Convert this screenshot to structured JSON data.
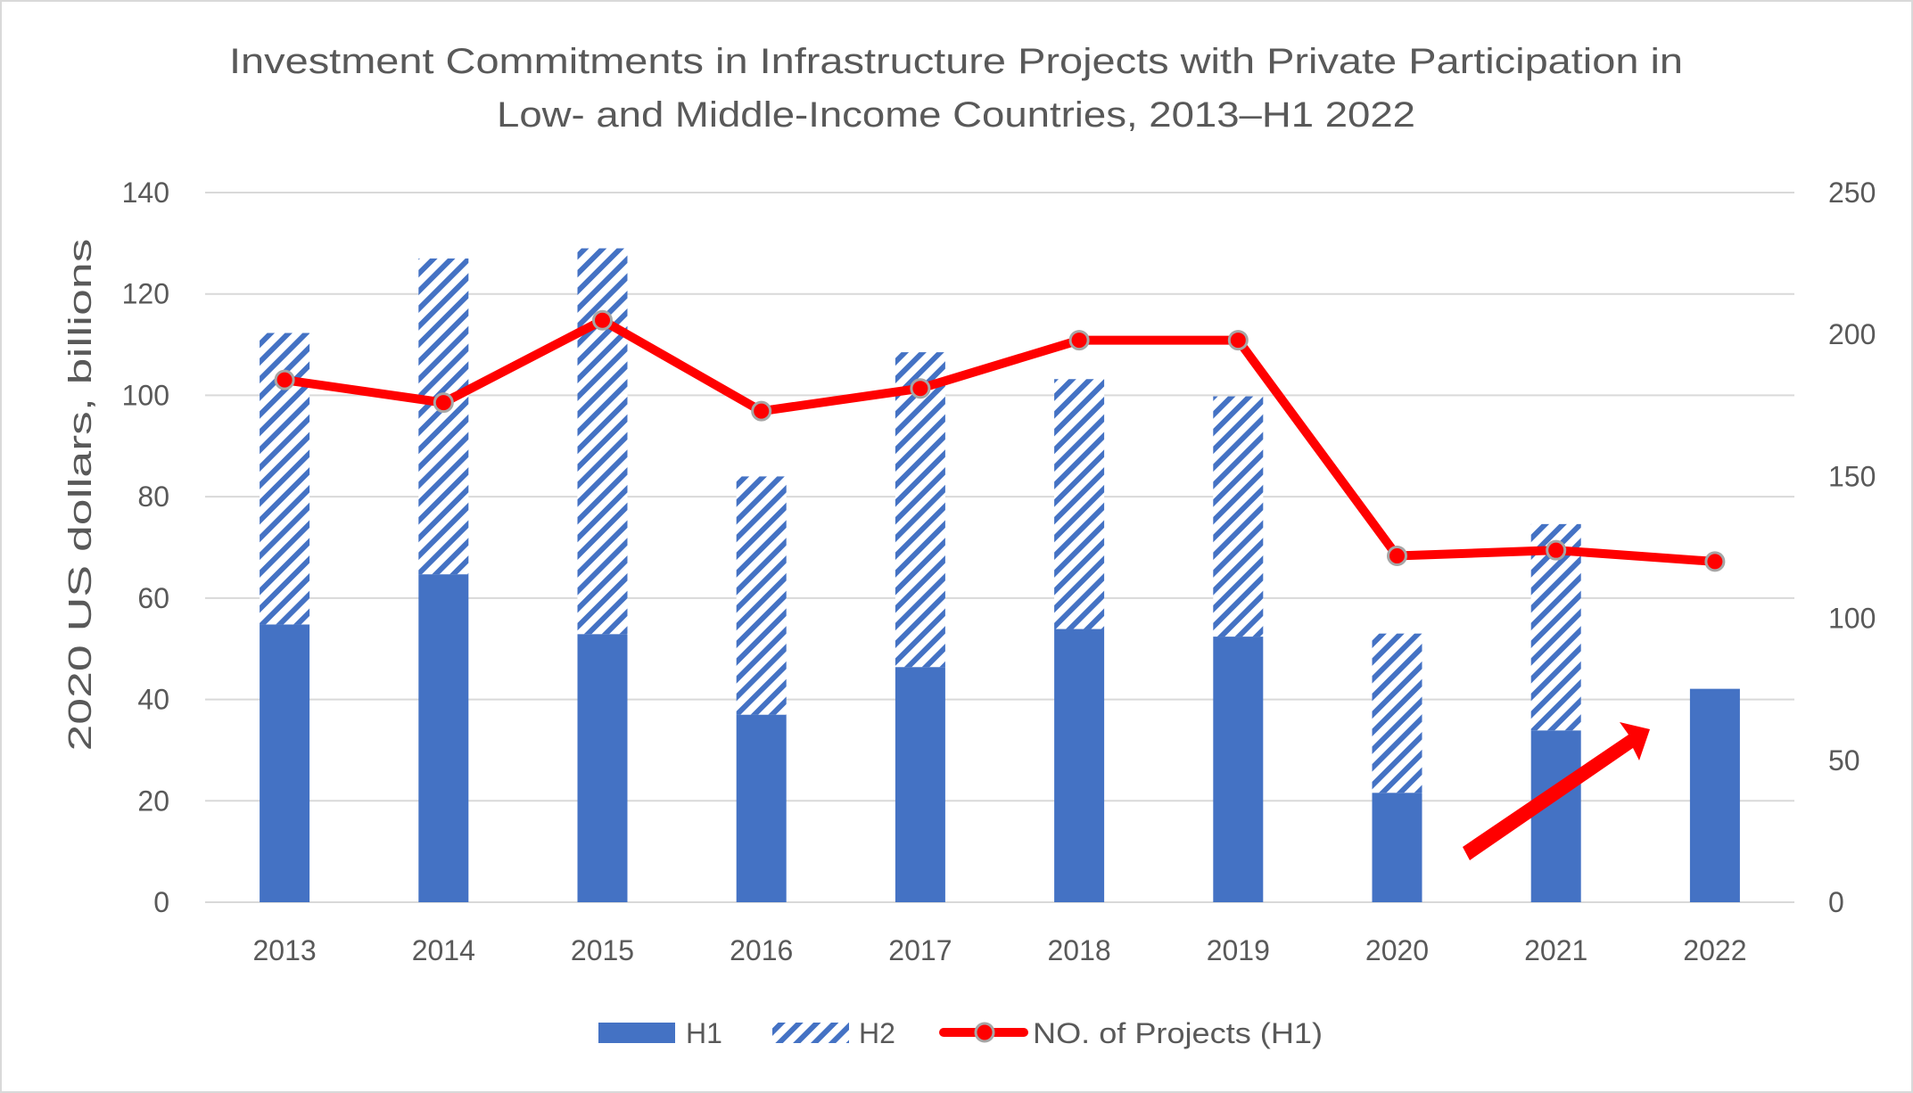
{
  "chart_data": {
    "type": "bar",
    "title_lines": [
      "Investment Commitments in Infrastructure Projects with Private Participation in",
      "Low- and Middle-Income Countries, 2013–H1 2022"
    ],
    "ylabel": "2020 US dollars,  billions",
    "ylabel_right": "",
    "xlabel": "",
    "categories": [
      "2013",
      "2014",
      "2015",
      "2016",
      "2017",
      "2018",
      "2019",
      "2020",
      "2021",
      "2022"
    ],
    "ylim": [
      0,
      140
    ],
    "yticks": [
      "0",
      "20",
      "40",
      "60",
      "80",
      "100",
      "120",
      "140"
    ],
    "y2lim": [
      0,
      250
    ],
    "y2ticks": [
      "0",
      "50",
      "100",
      "150",
      "200",
      "250"
    ],
    "grid": true,
    "legend_position": "bottom",
    "series": [
      {
        "name": "H1",
        "type": "stacked-bar",
        "axis": "left",
        "color": "#4472C4",
        "fill": "solid",
        "values": [
          54.8,
          64.7,
          52.9,
          37.0,
          46.4,
          53.9,
          52.4,
          21.6,
          33.9,
          42.1
        ]
      },
      {
        "name": "H2",
        "type": "stacked-bar",
        "axis": "left",
        "color": "#4472C4",
        "fill": "diagonal-hatch",
        "values": [
          57.5,
          62.3,
          76.1,
          47.0,
          62.1,
          49.3,
          47.4,
          31.4,
          40.7,
          null
        ]
      },
      {
        "name": "NO. of Projects (H1)",
        "type": "line",
        "axis": "right",
        "color": "#FF0000",
        "marker_edge": "#A6A6A6",
        "values": [
          184,
          176,
          205,
          173,
          181,
          198,
          198,
          122,
          124,
          120
        ]
      }
    ],
    "annotations": [
      {
        "type": "arrow",
        "color": "#FF0000",
        "direction": "up-right",
        "near": "2021"
      }
    ]
  }
}
